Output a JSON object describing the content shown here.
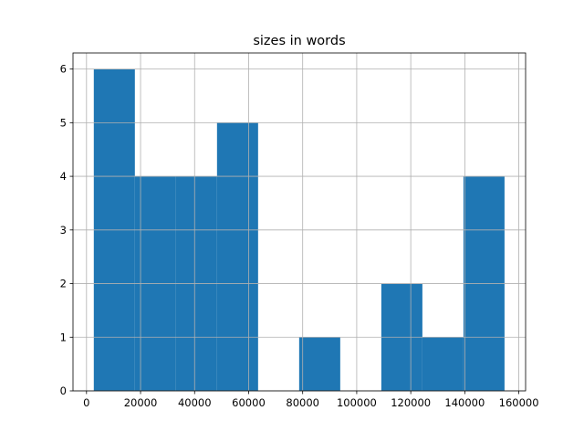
{
  "chart_data": {
    "type": "bar",
    "subtype": "histogram",
    "title": "sizes in words",
    "xlabel": "",
    "ylabel": "",
    "bin_edges": [
      2700,
      17900,
      33100,
      48300,
      63500,
      78700,
      93900,
      109100,
      124300,
      139500,
      154700
    ],
    "values": [
      6,
      4,
      4,
      5,
      0,
      1,
      0,
      2,
      1,
      4
    ],
    "xlim": [
      -5000,
      162500
    ],
    "ylim": [
      0,
      6.3
    ],
    "xticks": [
      0,
      20000,
      40000,
      60000,
      80000,
      100000,
      120000,
      140000,
      160000
    ],
    "yticks": [
      0,
      1,
      2,
      3,
      4,
      5,
      6
    ],
    "grid": true,
    "bar_color": "#1f77b4",
    "grid_color": "#b0b0b0"
  }
}
